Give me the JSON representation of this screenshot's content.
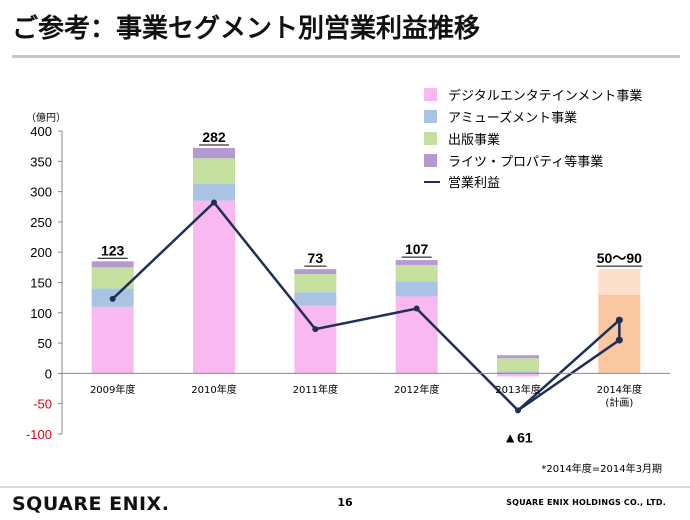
{
  "slide": {
    "title": "ご参考：事業セグメント別営業利益推移",
    "footnote": "*2014年度=2014年3月期",
    "logo": "SQUARE ENIX.",
    "page_number": "16",
    "company": "SQUARE ENIX HOLDINGS CO., LTD."
  },
  "chart_data": {
    "type": "bar",
    "stacked": true,
    "y_unit_label": "（億円）",
    "ylim": [
      -100,
      400
    ],
    "yticks": [
      -100,
      -50,
      0,
      50,
      100,
      150,
      200,
      250,
      300,
      350,
      400
    ],
    "categories": [
      "2009年度",
      "2010年度",
      "2011年度",
      "2012年度",
      "2013年度",
      "2014年度\n(計画)"
    ],
    "series": [
      {
        "name": "デジタルエンタテインメント事業",
        "color": "#f9b8ef",
        "values": [
          110,
          285,
          112,
          127,
          -5,
          null
        ]
      },
      {
        "name": "アミューズメント事業",
        "color": "#a9c3e5",
        "values": [
          30,
          28,
          22,
          25,
          3,
          null
        ]
      },
      {
        "name": "出版事業",
        "color": "#c6e0a0",
        "values": [
          35,
          42,
          30,
          27,
          22,
          null
        ]
      },
      {
        "name": "ライツ・プロパティ等事業",
        "color": "#b49ad0",
        "values": [
          10,
          17,
          8,
          8,
          5,
          null
        ]
      }
    ],
    "plan_bar": {
      "category": "2014年度\n(計画)",
      "low": 130,
      "high": 172,
      "color_low": "#f9c7a2",
      "color_high": "#fde0cb"
    },
    "operating_income": {
      "name": "営業利益",
      "color": "#1f2f55",
      "values": [
        123,
        282,
        73,
        107,
        -61,
        null
      ],
      "plan_range": [
        55,
        88
      ]
    },
    "data_labels": [
      "123",
      "282",
      "73",
      "107",
      "▲61",
      "50〜90"
    ]
  }
}
